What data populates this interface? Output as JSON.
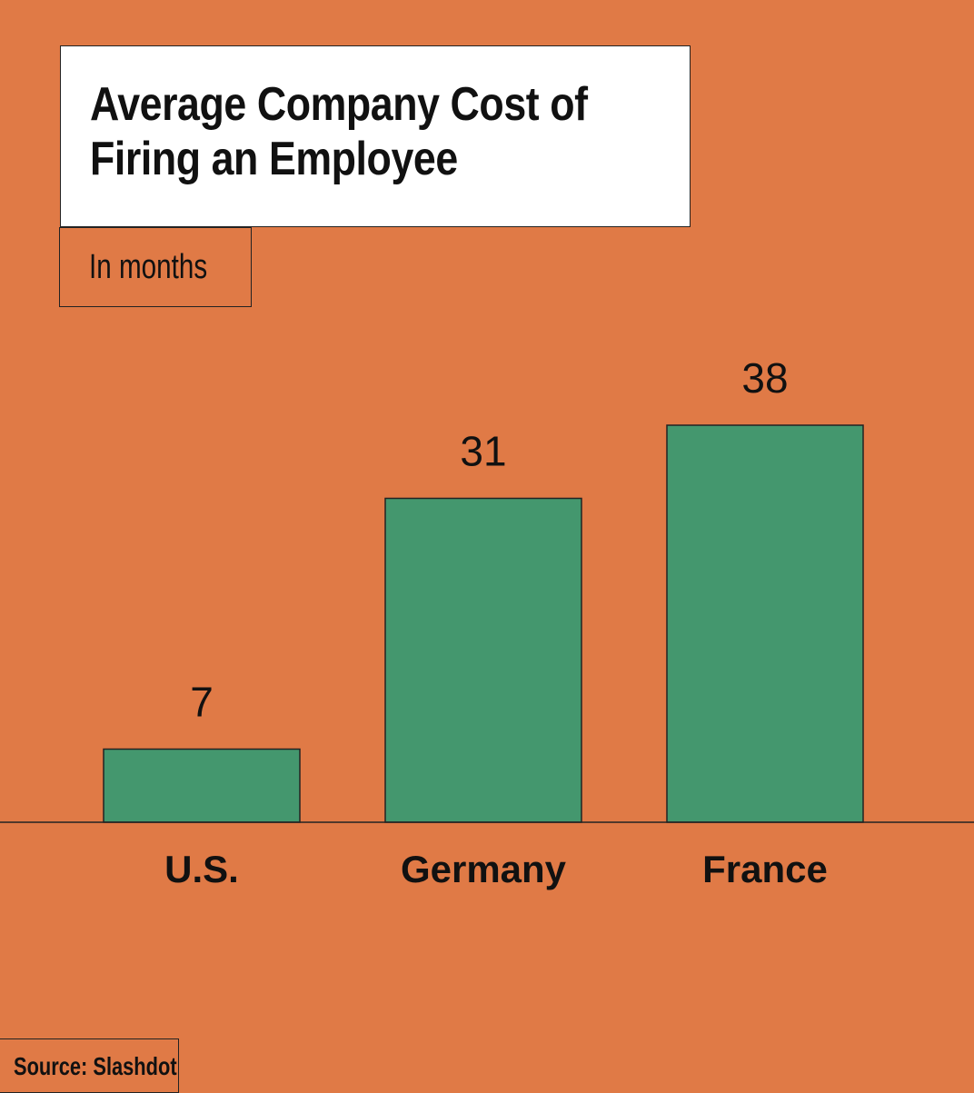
{
  "title": "Average Company Cost of\nFiring an Employee",
  "unit_label": "In months",
  "source": "Source: Slashdot",
  "colors": {
    "background": "#e07a46",
    "bar": "#44976e",
    "outline": "#222222",
    "text": "#111111"
  },
  "chart_data": {
    "type": "bar",
    "title": "Average Company Cost of\nFiring an Employee",
    "ylabel": "In months",
    "categories": [
      "U.S.",
      "Germany",
      "France"
    ],
    "values": [
      7,
      31,
      38
    ],
    "data_labels": [
      "7",
      "31",
      "38"
    ],
    "grid": false,
    "legend": "none"
  }
}
